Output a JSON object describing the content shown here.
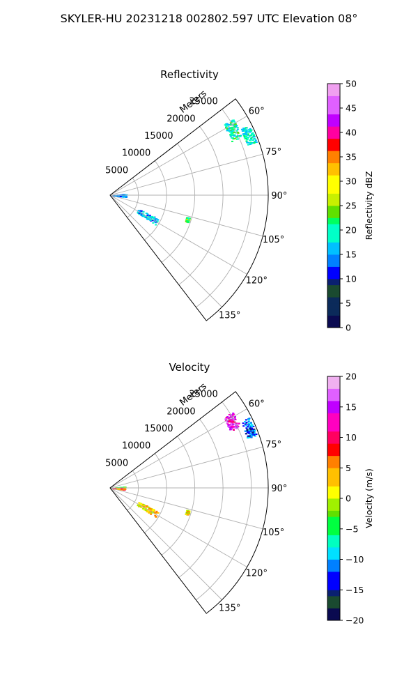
{
  "figure": {
    "title": "SKYLER-HU  20231218  002802.597 UTC Elevation 08°"
  },
  "chart_data": [
    {
      "type": "polar-sector",
      "title": "Reflectivity",
      "radial_label": "Meters",
      "range_ticks": [
        5000,
        10000,
        15000,
        20000,
        25000
      ],
      "range_tick_labels": [
        "5000",
        "10000",
        "15000",
        "20000",
        "25000"
      ],
      "azimuth_ticks": [
        60,
        75,
        90,
        105,
        120,
        135
      ],
      "azimuth_tick_labels": [
        "60°",
        "75°",
        "90°",
        "105°",
        "120°",
        "135°"
      ],
      "azimuth_range": [
        52.5,
        142.5
      ],
      "range_max": 28000,
      "colorbar": {
        "label": "Reflectivity dBZ",
        "range": [
          0,
          50
        ],
        "ticks": [
          0,
          5,
          10,
          15,
          20,
          25,
          30,
          35,
          40,
          45,
          50
        ],
        "tick_labels": [
          "0",
          "5",
          "10",
          "15",
          "20",
          "25",
          "30",
          "35",
          "40",
          "45",
          "50"
        ]
      },
      "echoes": [
        {
          "az_range": [
            58,
            66
          ],
          "range_m": [
            23500,
            25500
          ],
          "value": 20
        },
        {
          "az_range": [
            63,
            70
          ],
          "range_m": [
            25800,
            27500
          ],
          "value": 19
        },
        {
          "az_range": [
            84,
            96
          ],
          "range_m": [
            0,
            2800
          ],
          "value": 14
        },
        {
          "az_range": [
            116,
            123
          ],
          "range_m": [
            5500,
            9500
          ],
          "value": 16
        },
        {
          "az_range": [
            106,
            109
          ],
          "range_m": [
            14000,
            14500
          ],
          "value": 22
        }
      ]
    },
    {
      "type": "polar-sector",
      "title": "Velocity",
      "radial_label": "Meters",
      "range_ticks": [
        5000,
        10000,
        15000,
        20000,
        25000
      ],
      "range_tick_labels": [
        "5000",
        "10000",
        "15000",
        "20000",
        "25000"
      ],
      "azimuth_ticks": [
        60,
        75,
        90,
        105,
        120,
        135
      ],
      "azimuth_tick_labels": [
        "60°",
        "75°",
        "90°",
        "105°",
        "120°",
        "135°"
      ],
      "azimuth_range": [
        52.5,
        142.5
      ],
      "range_max": 28000,
      "colorbar": {
        "label": "Velocity (m/s)",
        "range": [
          -20,
          20
        ],
        "ticks": [
          -20,
          -15,
          -10,
          -5,
          0,
          5,
          10,
          15,
          20
        ],
        "tick_labels": [
          "−20",
          "−15",
          "−10",
          "−5",
          "0",
          "5",
          "10",
          "15",
          "20"
        ]
      },
      "echoes": [
        {
          "az_range": [
            58,
            65
          ],
          "range_m": [
            23500,
            25500
          ],
          "value": 14
        },
        {
          "az_range": [
            63,
            70
          ],
          "range_m": [
            25800,
            27500
          ],
          "value": -12
        },
        {
          "az_range": [
            84,
            88
          ],
          "range_m": [
            0,
            2600
          ],
          "value": -4
        },
        {
          "az_range": [
            90,
            96
          ],
          "range_m": [
            0,
            2600
          ],
          "value": 6
        },
        {
          "az_range": [
            116,
            123
          ],
          "range_m": [
            5500,
            9500
          ],
          "value": 3
        },
        {
          "az_range": [
            106,
            109
          ],
          "range_m": [
            14000,
            14500
          ],
          "value": 2
        }
      ]
    }
  ]
}
